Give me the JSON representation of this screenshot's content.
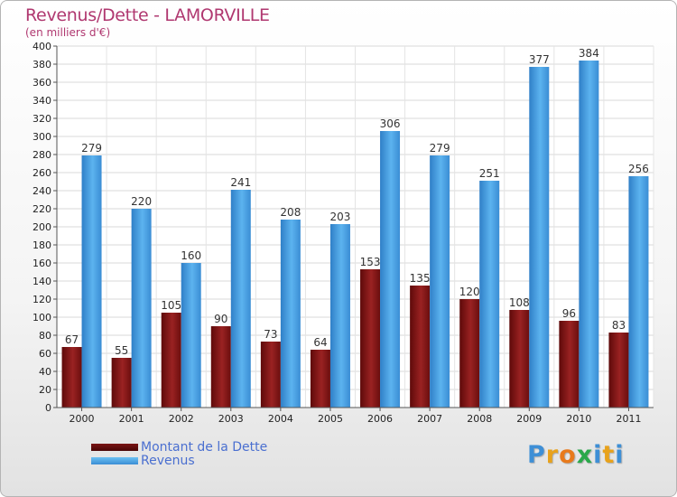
{
  "header": {
    "title": "Revenus/Dette - LAMORVILLE",
    "subtitle": "(en milliers d'€)"
  },
  "chart_data": {
    "type": "bar",
    "title": "Revenus/Dette - LAMORVILLE",
    "subtitle": "(en milliers d'€)",
    "categories": [
      "2000",
      "2001",
      "2002",
      "2003",
      "2004",
      "2005",
      "2006",
      "2007",
      "2008",
      "2009",
      "2010",
      "2011"
    ],
    "series": [
      {
        "name": "Montant de la Dette",
        "color": "#8b1a1a",
        "values": [
          67,
          55,
          105,
          90,
          73,
          64,
          153,
          135,
          120,
          108,
          96,
          83
        ]
      },
      {
        "name": "Revenus",
        "color": "#4aa3e6",
        "values": [
          279,
          220,
          160,
          241,
          208,
          203,
          306,
          279,
          251,
          377,
          384,
          256
        ]
      }
    ],
    "ylim": [
      0,
      400
    ],
    "ytick_step": 20,
    "grid": true,
    "legend": "bottom-left"
  },
  "logo": {
    "letters": [
      "P",
      "r",
      "o",
      "x",
      "i",
      "t",
      "i"
    ],
    "colors": [
      "#3e8fd6",
      "#e8a21c",
      "#e87a1c",
      "#2aa84a",
      "#3e8fd6",
      "#e8a21c",
      "#3e8fd6"
    ]
  }
}
